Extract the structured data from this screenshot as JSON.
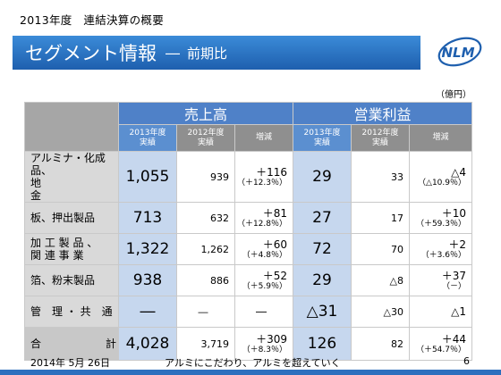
{
  "header": {
    "top_label": "2013年度　連結決算の概要",
    "title": "セグメント情報",
    "title_sep": "―",
    "title_sub": "前期比",
    "logo_text": "NLM",
    "unit": "（億円）"
  },
  "table": {
    "groups": [
      "売上高",
      "営業利益"
    ],
    "subheaders": [
      "2013年度\n実績",
      "2012年度\n実績",
      "増減",
      "2013年度\n実績",
      "2012年度\n実績",
      "増減"
    ],
    "rows": [
      {
        "label": "アルミナ・化成品、\n地　　　　　　　金",
        "sales_2013": "1,055",
        "sales_2012": "939",
        "sales_chg": "＋116",
        "sales_pct": "（＋12.3％）",
        "op_2013": "29",
        "op_2012": "33",
        "op_chg": "△4",
        "op_pct": "（△10.9％）"
      },
      {
        "label": "板、押出製品",
        "sales_2013": "713",
        "sales_2012": "632",
        "sales_chg": "＋81",
        "sales_pct": "（＋12.8％）",
        "op_2013": "27",
        "op_2012": "17",
        "op_chg": "＋10",
        "op_pct": "（＋59.3％）"
      },
      {
        "label": "加 工 製 品 、\n関 連 事 業",
        "sales_2013": "1,322",
        "sales_2012": "1,262",
        "sales_chg": "＋60",
        "sales_pct": "（＋4.8％）",
        "op_2013": "72",
        "op_2012": "70",
        "op_chg": "＋2",
        "op_pct": "（＋3.6％）"
      },
      {
        "label": "箔、粉末製品",
        "sales_2013": "938",
        "sales_2012": "886",
        "sales_chg": "＋52",
        "sales_pct": "（＋5.9％）",
        "op_2013": "29",
        "op_2012": "△8",
        "op_chg": "＋37",
        "op_pct": "（－）"
      },
      {
        "label": "管　理 ・ 共　通",
        "sales_2013": "―",
        "sales_2012": "―",
        "sales_chg": "―",
        "sales_pct": "",
        "op_2013": "△31",
        "op_2012": "△30",
        "op_chg": "△1",
        "op_pct": ""
      }
    ],
    "total": {
      "label": "合　　　　　　計",
      "sales_2013": "4,028",
      "sales_2012": "3,719",
      "sales_chg": "＋309",
      "sales_pct": "（＋8.3％）",
      "op_2013": "126",
      "op_2012": "82",
      "op_chg": "＋44",
      "op_pct": "（＋54.7％）"
    }
  },
  "footer": {
    "date": "2014年 5月 26日",
    "slogan": "アルミにこだわり、アルミを超えていく",
    "page": "6"
  },
  "colors": {
    "title_bar": "#2a73c5",
    "highlight_column": "#c6d7ee",
    "group_header": "#4f81c8",
    "label_column": "#d9d9d9"
  }
}
